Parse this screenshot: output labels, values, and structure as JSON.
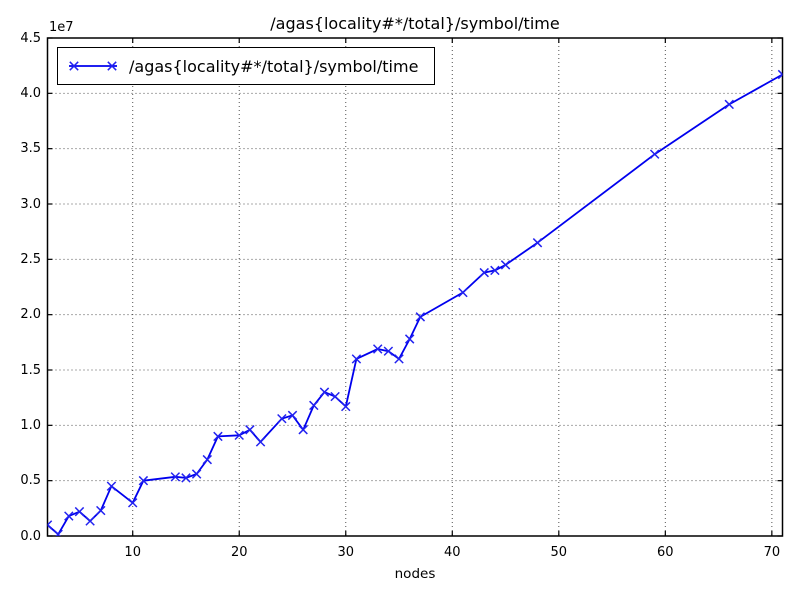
{
  "figure": {
    "background": "#ffffff",
    "accent_line_color": "#0000ee"
  },
  "chart_data": {
    "type": "line",
    "title": "/agas{locality#*/total}/symbol/time",
    "xlabel": "nodes",
    "ylabel": "",
    "y_offset_label": "1e7",
    "legend_position": "upper left",
    "grid": "dotted",
    "grid_color": "#333333",
    "line_color": "#0000ee",
    "marker": "x",
    "marker_color": "#2222f0",
    "xlim": [
      2,
      71
    ],
    "ylim": [
      0,
      45000000
    ],
    "x_ticks": [
      10,
      20,
      30,
      40,
      50,
      60,
      70
    ],
    "x_tick_labels": [
      "10",
      "20",
      "30",
      "40",
      "50",
      "60",
      "70"
    ],
    "y_ticks": [
      0,
      5000000,
      10000000,
      15000000,
      20000000,
      25000000,
      30000000,
      35000000,
      40000000,
      45000000
    ],
    "y_tick_labels": [
      "0.0",
      "0.5",
      "1.0",
      "1.5",
      "2.0",
      "2.5",
      "3.0",
      "3.5",
      "4.0",
      "4.5"
    ],
    "series": [
      {
        "name": "/agas{locality#*/total}/symbol/time",
        "x": [
          2,
          3,
          4,
          5,
          6,
          7,
          8,
          10,
          11,
          14,
          15,
          16,
          17,
          18,
          20,
          21,
          22,
          24,
          25,
          26,
          27,
          28,
          29,
          30,
          31,
          33,
          34,
          35,
          36,
          37,
          41,
          43,
          44,
          45,
          48,
          59,
          66,
          71
        ],
        "y": [
          1000000,
          150000,
          1800000,
          2200000,
          1350000,
          2300000,
          4500000,
          3000000,
          5000000,
          5350000,
          5250000,
          5600000,
          6900000,
          9000000,
          9100000,
          9600000,
          8500000,
          10600000,
          10900000,
          9600000,
          11800000,
          13000000,
          12600000,
          11700000,
          16000000,
          16900000,
          16700000,
          16000000,
          17800000,
          19800000,
          22000000,
          23800000,
          24000000,
          24500000,
          26500000,
          34500000,
          39000000,
          41700000
        ]
      }
    ]
  }
}
